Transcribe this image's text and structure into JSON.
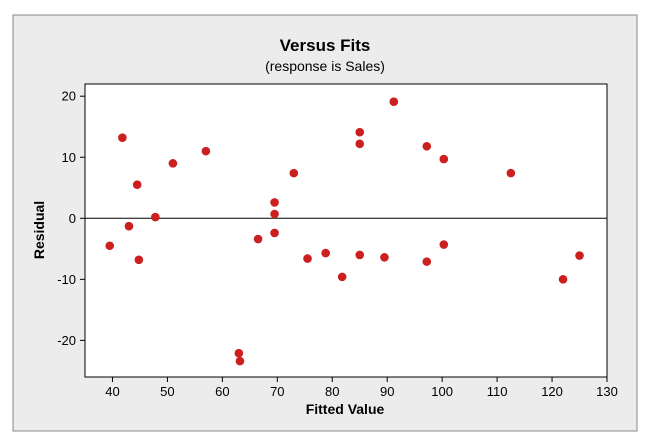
{
  "chart_data": {
    "type": "scatter",
    "title": "Versus Fits",
    "subtitle": "(response is Sales)",
    "xlabel": "Fitted Value",
    "ylabel": "Residual",
    "xlim": [
      35,
      130
    ],
    "ylim": [
      -26,
      22
    ],
    "xticks": [
      40,
      50,
      60,
      70,
      80,
      90,
      100,
      110,
      120,
      130
    ],
    "yticks": [
      -20,
      -10,
      0,
      10,
      20
    ],
    "reference_line_y": 0,
    "grid": false,
    "point_color": "#cc1f1f",
    "frame_bg": "#ececec",
    "plot_bg": "#ffffff",
    "points": [
      {
        "x": 39.5,
        "y": -4.5
      },
      {
        "x": 41.8,
        "y": 13.2
      },
      {
        "x": 43.0,
        "y": -1.3
      },
      {
        "x": 44.5,
        "y": 5.5
      },
      {
        "x": 44.8,
        "y": -6.8
      },
      {
        "x": 47.8,
        "y": 0.2
      },
      {
        "x": 51.0,
        "y": 9.0
      },
      {
        "x": 57.0,
        "y": 11.0
      },
      {
        "x": 63.0,
        "y": -22.1
      },
      {
        "x": 63.2,
        "y": -23.4
      },
      {
        "x": 66.5,
        "y": -3.4
      },
      {
        "x": 69.5,
        "y": 2.6
      },
      {
        "x": 69.5,
        "y": 0.7
      },
      {
        "x": 69.5,
        "y": -2.4
      },
      {
        "x": 73.0,
        "y": 7.4
      },
      {
        "x": 75.5,
        "y": -6.6
      },
      {
        "x": 78.8,
        "y": -5.7
      },
      {
        "x": 81.8,
        "y": -9.6
      },
      {
        "x": 85.0,
        "y": 14.1
      },
      {
        "x": 85.0,
        "y": 12.2
      },
      {
        "x": 85.0,
        "y": -6.0
      },
      {
        "x": 89.5,
        "y": -6.4
      },
      {
        "x": 91.2,
        "y": 19.1
      },
      {
        "x": 97.2,
        "y": 11.8
      },
      {
        "x": 97.2,
        "y": -7.1
      },
      {
        "x": 100.3,
        "y": 9.7
      },
      {
        "x": 100.3,
        "y": -4.3
      },
      {
        "x": 112.5,
        "y": 7.4
      },
      {
        "x": 122.0,
        "y": -10.0
      },
      {
        "x": 125.0,
        "y": -6.1
      }
    ]
  }
}
